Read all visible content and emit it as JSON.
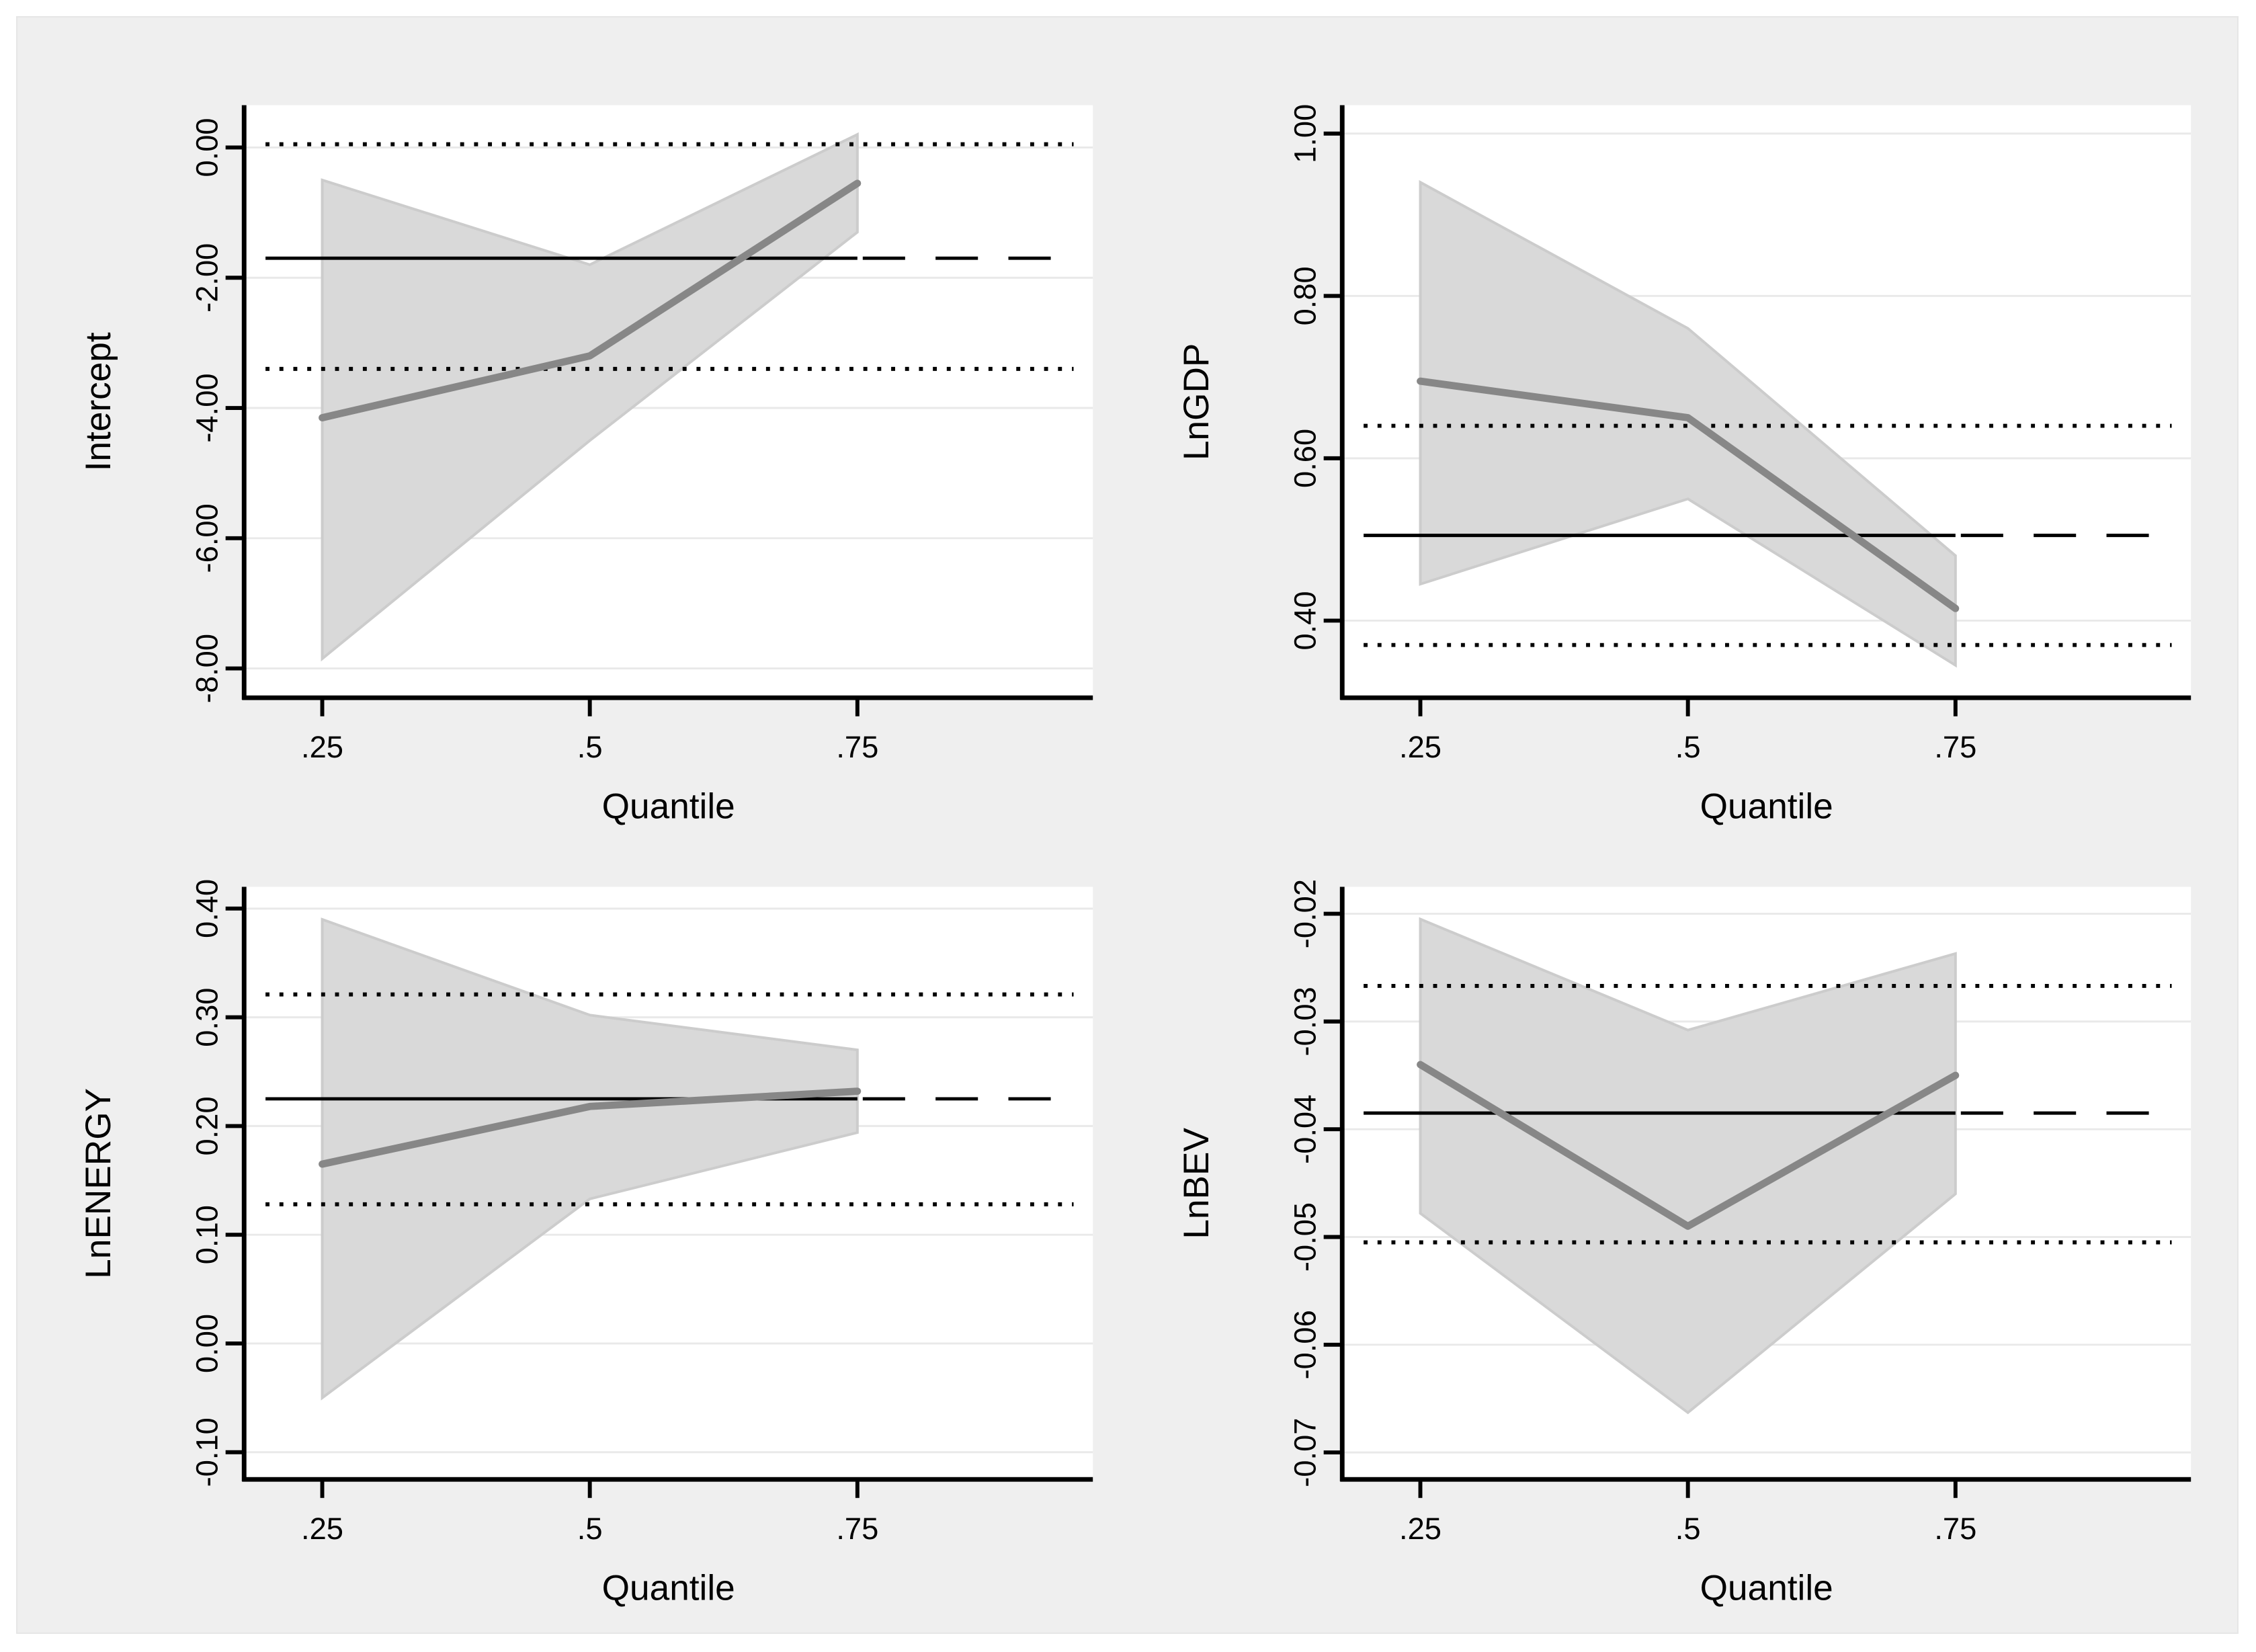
{
  "figure": {
    "description": "Quantile regression coefficient plots with OLS reference lines",
    "colors": {
      "figure_bg": "#efefef",
      "plot_bg": "#ffffff",
      "gridline": "#e9e9e9",
      "band_fill": "#d9d9d9",
      "band_edge": "#cccccc",
      "qreg_line": "#878787",
      "reference": "#000000",
      "text": "#000000"
    }
  },
  "x_axis": {
    "label": "Quantile",
    "range": [
      0.177,
      0.97
    ],
    "ticks": [
      {
        "q": 0.25,
        "label": ".25"
      },
      {
        "q": 0.5,
        "label": ".5"
      },
      {
        "q": 0.75,
        "label": ".75"
      }
    ]
  },
  "chart_data": [
    {
      "type": "line",
      "id": "intercept",
      "ylabel": "Intercept",
      "xlabel": "Quantile",
      "x": [
        0.25,
        0.5,
        0.75
      ],
      "series": [
        {
          "name": "quantile regression estimate",
          "values": [
            -4.15,
            -3.2,
            -0.55
          ]
        },
        {
          "name": "CI band upper",
          "values": [
            -0.5,
            -1.8,
            0.2
          ]
        },
        {
          "name": "CI band lower",
          "values": [
            -7.85,
            -4.5,
            -1.3
          ]
        }
      ],
      "ols_estimate": -1.7,
      "ols_ci": [
        -3.4,
        0.05
      ],
      "ylim": [
        -8.45,
        0.65
      ],
      "yticks": {
        "values": [
          0,
          -2,
          -4,
          -6,
          -8
        ],
        "labels": [
          "0.00",
          "-2.00",
          "-4.00",
          "-6.00",
          "-8.00"
        ]
      },
      "grid": true,
      "legend": "none"
    },
    {
      "type": "line",
      "id": "lngdp",
      "ylabel": "LnGDP",
      "xlabel": "Quantile",
      "x": [
        0.25,
        0.5,
        0.75
      ],
      "series": [
        {
          "name": "quantile regression estimate",
          "values": [
            0.695,
            0.65,
            0.415
          ]
        },
        {
          "name": "CI band upper",
          "values": [
            0.94,
            0.76,
            0.48
          ]
        },
        {
          "name": "CI band lower",
          "values": [
            0.445,
            0.55,
            0.345
          ]
        }
      ],
      "ols_estimate": 0.505,
      "ols_ci": [
        0.37,
        0.64
      ],
      "ylim": [
        0.305,
        1.035
      ],
      "yticks": {
        "values": [
          1.0,
          0.8,
          0.6,
          0.4
        ],
        "labels": [
          "1.00",
          "0.80",
          "0.60",
          "0.40"
        ]
      },
      "grid": true,
      "legend": "none"
    },
    {
      "type": "line",
      "id": "lnenergy",
      "ylabel": "LnENERGY",
      "xlabel": "Quantile",
      "x": [
        0.25,
        0.5,
        0.75
      ],
      "series": [
        {
          "name": "quantile regression estimate",
          "values": [
            0.165,
            0.218,
            0.232
          ]
        },
        {
          "name": "CI band upper",
          "values": [
            0.39,
            0.302,
            0.27
          ]
        },
        {
          "name": "CI band lower",
          "values": [
            -0.05,
            0.133,
            0.194
          ]
        }
      ],
      "ols_estimate": 0.225,
      "ols_ci": [
        0.128,
        0.321
      ],
      "ylim": [
        -0.125,
        0.42
      ],
      "yticks": {
        "values": [
          0.4,
          0.3,
          0.2,
          0.1,
          0.0,
          -0.1
        ],
        "labels": [
          "0.40",
          "0.30",
          "0.20",
          "0.10",
          "0.00",
          "-0.10"
        ]
      },
      "grid": true,
      "legend": "none"
    },
    {
      "type": "line",
      "id": "lnbev",
      "ylabel": "LnBEV",
      "xlabel": "Quantile",
      "x": [
        0.25,
        0.5,
        0.75
      ],
      "series": [
        {
          "name": "quantile regression estimate",
          "values": [
            -0.034,
            -0.049,
            -0.035
          ]
        },
        {
          "name": "CI band upper",
          "values": [
            -0.0205,
            -0.0308,
            -0.0237
          ]
        },
        {
          "name": "CI band lower",
          "values": [
            -0.0478,
            -0.0663,
            -0.046
          ]
        }
      ],
      "ols_estimate": -0.0385,
      "ols_ci": [
        -0.0505,
        -0.0267
      ],
      "ylim": [
        -0.0725,
        -0.0175
      ],
      "yticks": {
        "values": [
          -0.02,
          -0.03,
          -0.04,
          -0.05,
          -0.06,
          -0.07
        ],
        "labels": [
          "-0.02",
          "-0.03",
          "-0.04",
          "-0.05",
          "-0.06",
          "-0.07"
        ]
      },
      "grid": true,
      "legend": "none"
    }
  ]
}
